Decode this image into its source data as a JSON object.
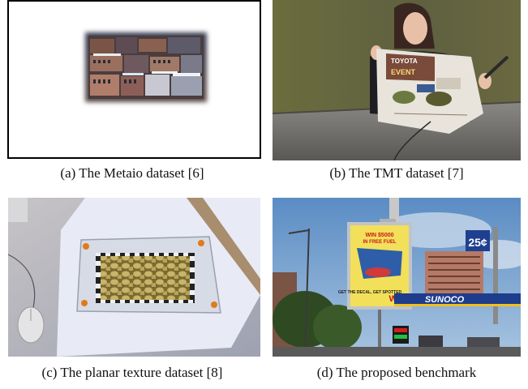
{
  "figure": {
    "panels": [
      {
        "id": "a",
        "caption": "(a) The Metaio dataset [6]",
        "image_desc": "city rooftops texture with soft edges on white"
      },
      {
        "id": "b",
        "caption": "(b) The TMT dataset [7]",
        "image_desc": "woman holding a newspaper at a desk"
      },
      {
        "id": "c",
        "caption": "(c) The planar texture dataset [8]",
        "image_desc": "framed stone texture on a table with a mouse"
      },
      {
        "id": "d",
        "caption": "(d) The proposed benchmark",
        "image_desc": "gas station street scene with billboard"
      }
    ],
    "embedded_text": {
      "toyota": "TOYOTA",
      "event": "EVENT",
      "price_sign": "25¢",
      "station": "SUNOCO",
      "billboard_top": "WIN $5000",
      "billboard_mid": "IN FREE FUEL",
      "billboard_bottom": "GET THE DECAL, GET SPOTTED",
      "billboard_win": "WIN!"
    }
  }
}
